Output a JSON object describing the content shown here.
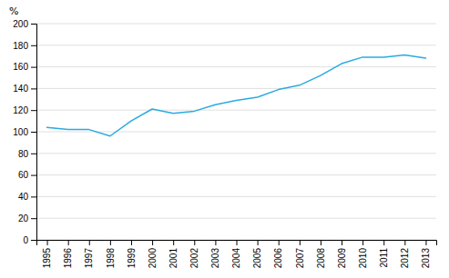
{
  "chart_data": {
    "type": "line",
    "y_label": "%",
    "x": [
      1995,
      1996,
      1997,
      1998,
      1999,
      2000,
      2001,
      2002,
      2003,
      2004,
      2005,
      2006,
      2007,
      2008,
      2009,
      2010,
      2011,
      2012,
      2013
    ],
    "values": [
      104,
      102,
      102,
      96,
      110,
      121,
      117,
      119,
      125,
      129,
      132,
      139,
      143,
      152,
      163,
      169,
      169,
      171,
      168
    ],
    "color": "#29abe2",
    "xlim": [
      1994.5,
      2013.5
    ],
    "xticks": [
      1995,
      1996,
      1997,
      1998,
      1999,
      2000,
      2001,
      2002,
      2003,
      2004,
      2005,
      2006,
      2007,
      2008,
      2009,
      2010,
      2011,
      2012,
      2013
    ],
    "ylim": [
      0,
      200
    ],
    "yticks": [
      0,
      20,
      40,
      60,
      80,
      100,
      120,
      140,
      160,
      180,
      200
    ],
    "grid": true
  }
}
